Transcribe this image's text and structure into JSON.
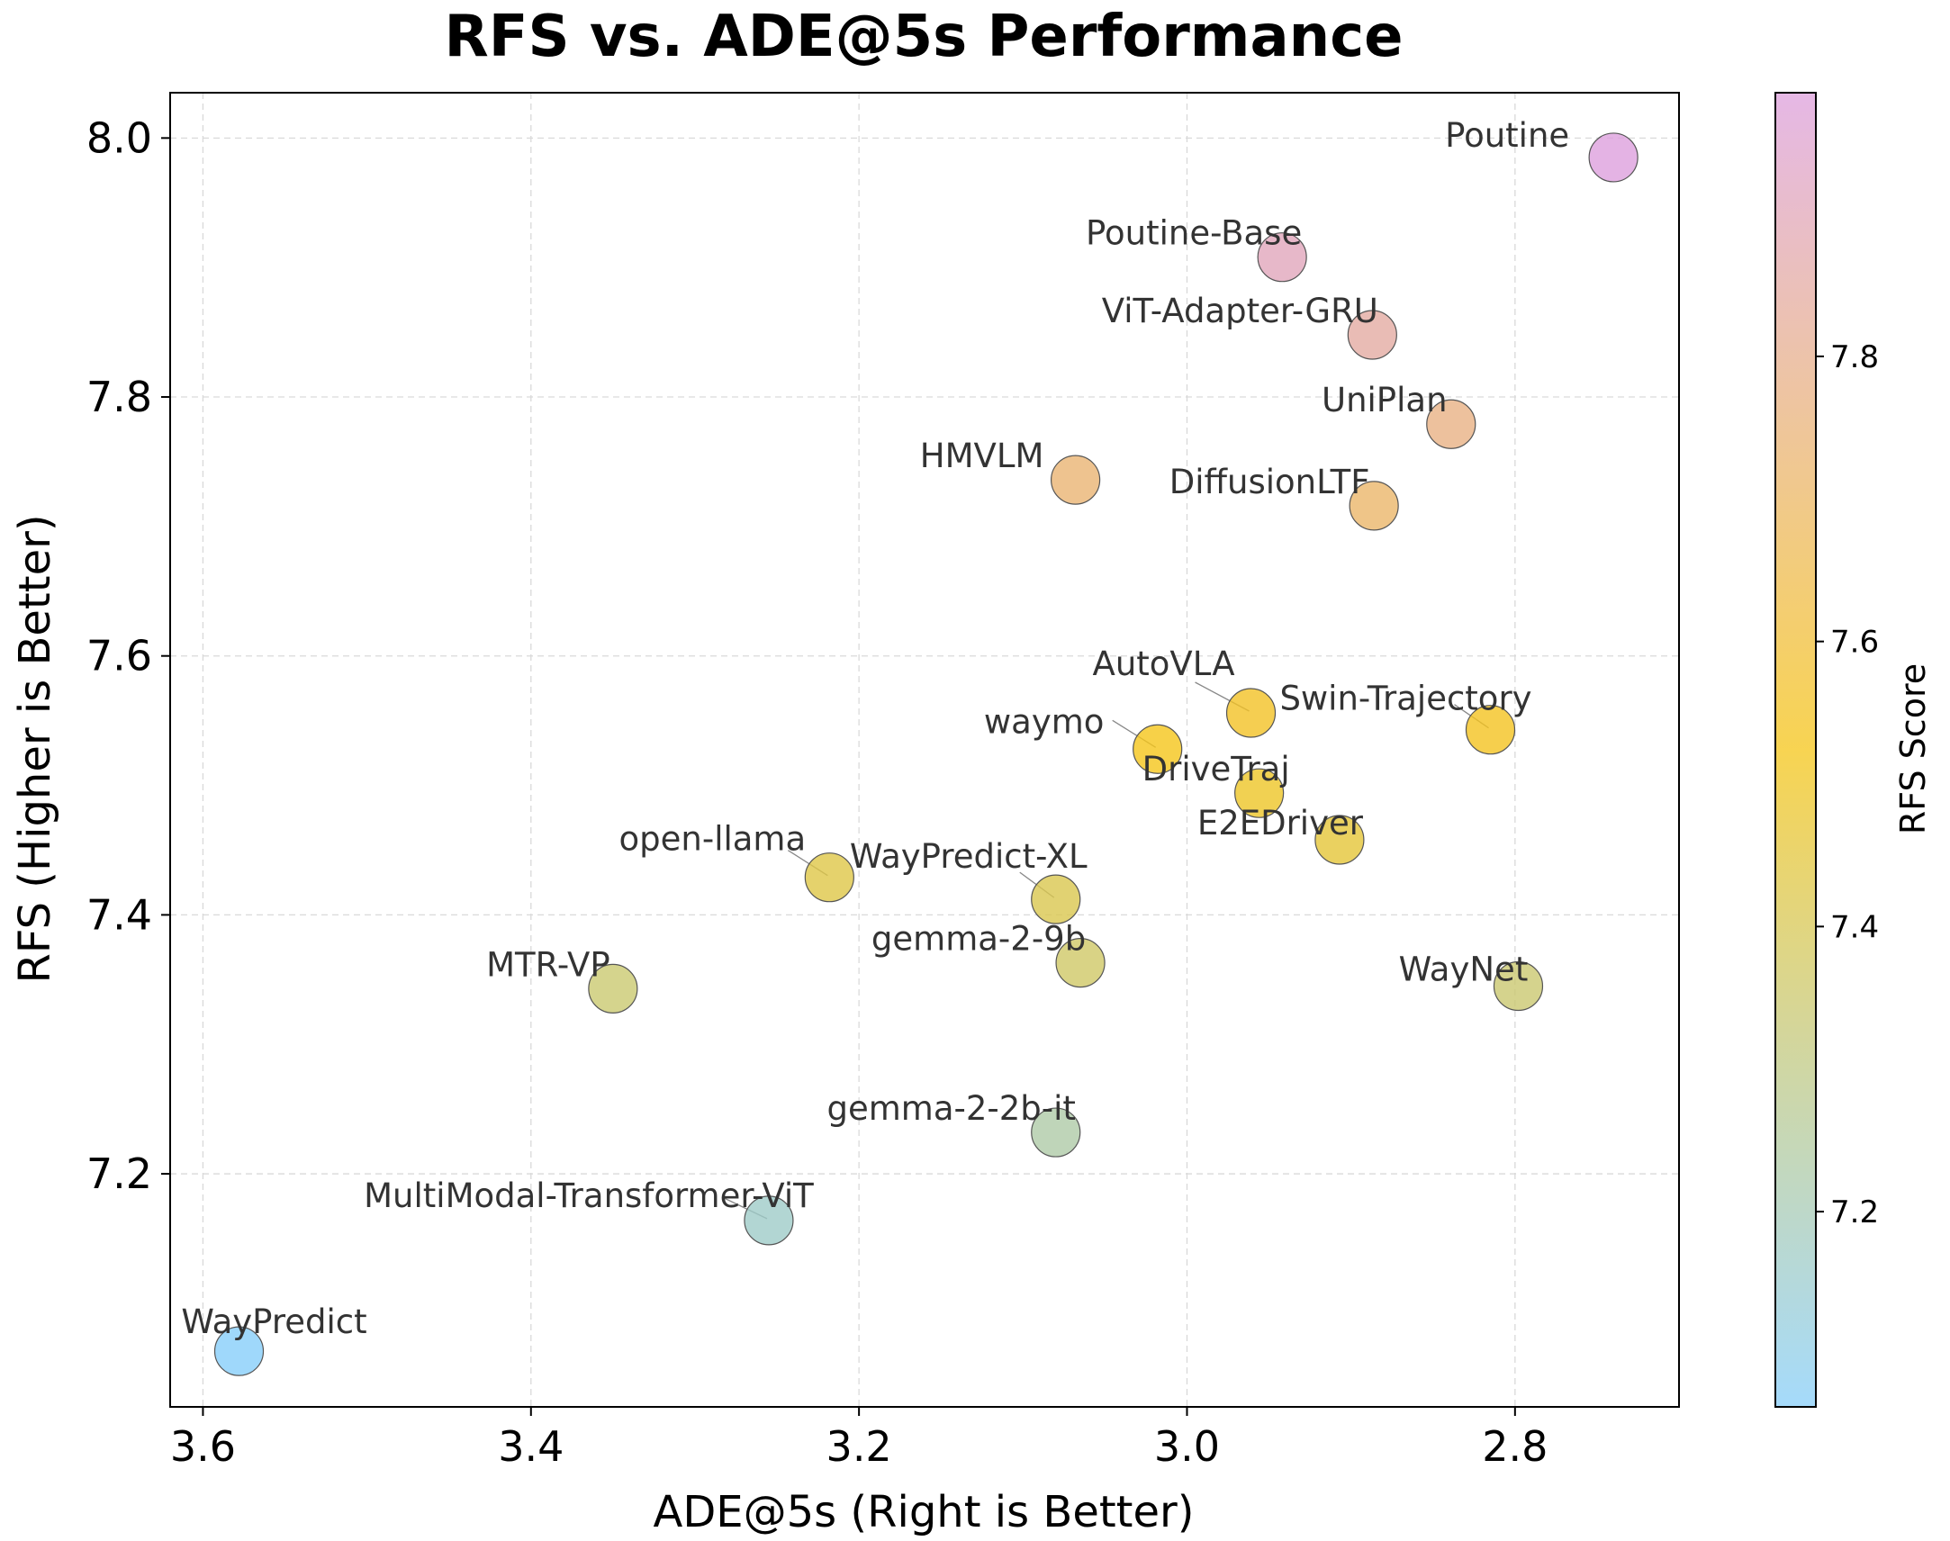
{
  "chart_data": {
    "type": "scatter",
    "title": "RFS vs. ADE@5s Performance",
    "xlabel": "ADE@5s (Right is Better)",
    "ylabel": "RFS (Higher is Better)",
    "xlim": [
      3.62,
      2.7
    ],
    "ylim": [
      7.02,
      8.035
    ],
    "x_inverted": true,
    "xticks": [
      3.6,
      3.4,
      3.2,
      3.0,
      2.8
    ],
    "xtick_labels": [
      "3.6",
      "3.4",
      "3.2",
      "3.0",
      "2.8"
    ],
    "yticks": [
      7.2,
      7.4,
      7.6,
      7.8,
      8.0
    ],
    "ytick_labels": [
      "7.2",
      "7.4",
      "7.6",
      "7.8",
      "8.0"
    ],
    "grid": true,
    "colorbar": {
      "label": "RFS Score",
      "range": [
        7.063,
        7.985
      ],
      "ticks": [
        7.2,
        7.4,
        7.6,
        7.8
      ],
      "tick_labels": [
        "7.2",
        "7.4",
        "7.6",
        "7.8"
      ],
      "colors": [
        "#87CEFA",
        "#F5C518",
        "#DDA0DD"
      ]
    },
    "points": [
      {
        "name": "Poutine",
        "x": 2.74,
        "y": 7.985
      },
      {
        "name": "Poutine-Base",
        "x": 2.942,
        "y": 7.908
      },
      {
        "name": "ViT-Adapter-GRU",
        "x": 2.887,
        "y": 7.848
      },
      {
        "name": "UniPlan",
        "x": 2.839,
        "y": 7.779
      },
      {
        "name": "HMVLM",
        "x": 3.068,
        "y": 7.736
      },
      {
        "name": "DiffusionLTF",
        "x": 2.886,
        "y": 7.716
      },
      {
        "name": "AutoVLA",
        "x": 2.961,
        "y": 7.556
      },
      {
        "name": "Swin-Trajectory",
        "x": 2.815,
        "y": 7.543
      },
      {
        "name": "waymo",
        "x": 3.018,
        "y": 7.528
      },
      {
        "name": "DriveTraj",
        "x": 2.956,
        "y": 7.494
      },
      {
        "name": "E2EDriver",
        "x": 2.907,
        "y": 7.458
      },
      {
        "name": "open-llama",
        "x": 3.218,
        "y": 7.429
      },
      {
        "name": "WayPredict-XL",
        "x": 3.08,
        "y": 7.412
      },
      {
        "name": "gemma-2-9b",
        "x": 3.065,
        "y": 7.363
      },
      {
        "name": "MTR-VP",
        "x": 3.35,
        "y": 7.343
      },
      {
        "name": "WayNet",
        "x": 2.798,
        "y": 7.345
      },
      {
        "name": "gemma-2-2b-it",
        "x": 3.08,
        "y": 7.232
      },
      {
        "name": "MultiModal-Transformer-ViT",
        "x": 3.255,
        "y": 7.164
      },
      {
        "name": "WayPredict",
        "x": 3.578,
        "y": 7.063
      }
    ]
  }
}
